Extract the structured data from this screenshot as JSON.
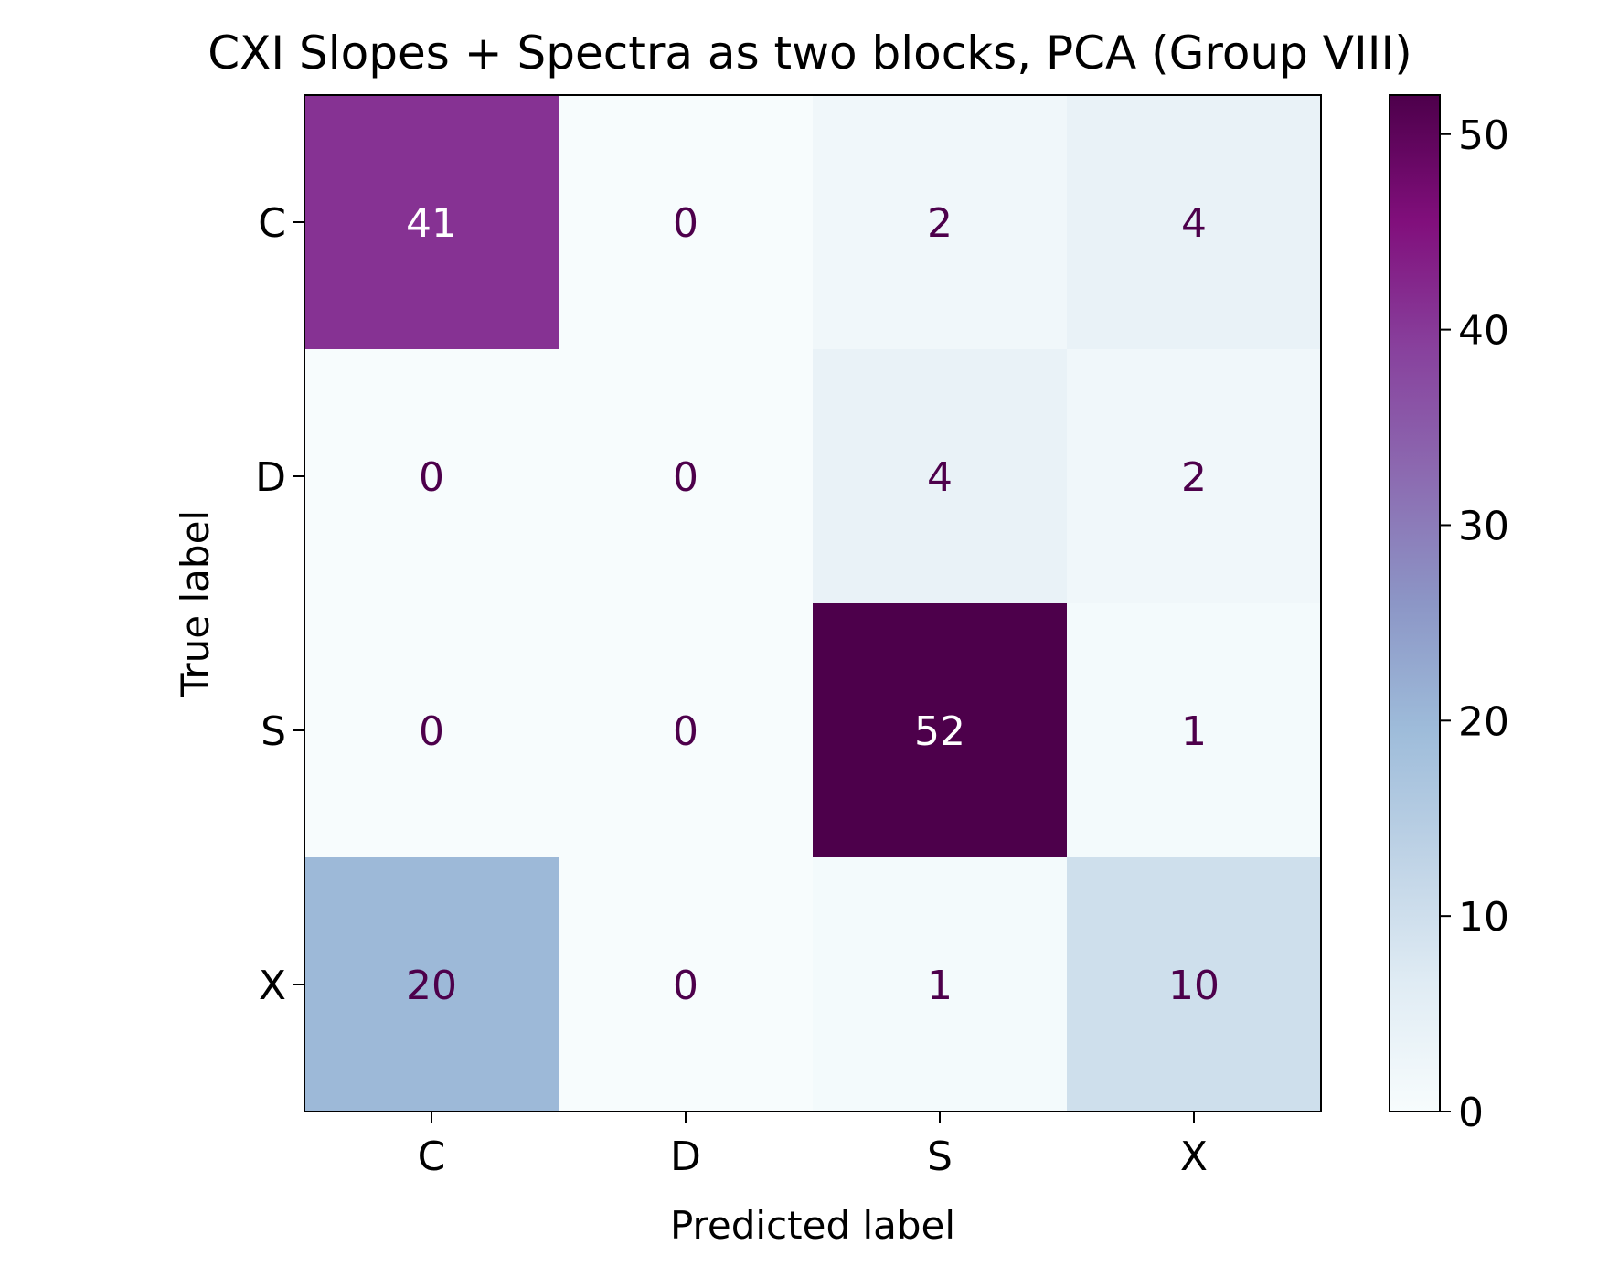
{
  "chart_data": {
    "type": "heatmap",
    "title": "CXI Slopes + Spectra as two blocks, PCA (Group VIII)",
    "xlabel": "Predicted label",
    "ylabel": "True label",
    "x_categories": [
      "C",
      "D",
      "S",
      "X"
    ],
    "y_categories": [
      "C",
      "D",
      "S",
      "X"
    ],
    "values": [
      [
        41,
        0,
        2,
        4
      ],
      [
        0,
        0,
        4,
        2
      ],
      [
        0,
        0,
        52,
        1
      ],
      [
        20,
        0,
        1,
        10
      ]
    ],
    "colorbar": {
      "range": [
        0,
        52
      ],
      "ticks": [
        "0",
        "10",
        "20",
        "30",
        "40",
        "50"
      ],
      "colormap": "BuPu"
    },
    "text_colors": {
      "dark_cell": "#ffffff",
      "light_cell": "#4d004b"
    }
  }
}
